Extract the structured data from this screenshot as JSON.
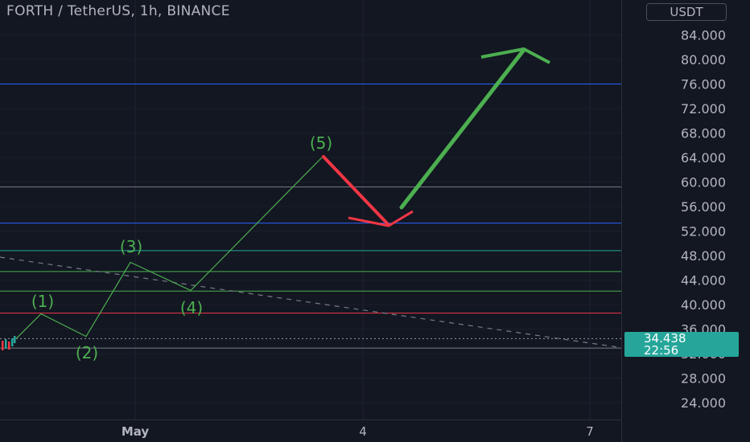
{
  "header": {
    "symbol_title": "FORTH / TetherUS, 1h, BINANCE",
    "currency_button": "USDT"
  },
  "price_badge": {
    "price": "34.438",
    "countdown": "22:56",
    "color": "#26a69a"
  },
  "chart_data": {
    "type": "line",
    "symbol": "FORTH / TetherUS",
    "interval": "1h",
    "exchange": "BINANCE",
    "y_axis_unit": "USDT",
    "y_ticks": [
      24,
      28,
      32,
      36,
      40,
      44,
      48,
      52,
      56,
      60,
      64,
      68,
      72,
      76,
      80,
      84
    ],
    "y_tick_labels": [
      "24.000",
      "28.000",
      "32.000",
      "36.000",
      "40.000",
      "44.000",
      "48.000",
      "52.000",
      "56.000",
      "60.000",
      "64.000",
      "68.000",
      "72.000",
      "76.000",
      "80.000",
      "84.000"
    ],
    "x_tick_labels": [
      "May",
      "4",
      "7"
    ],
    "current_price": 34.438,
    "horizontal_levels": [
      {
        "value": 76.0,
        "color": "#2962ff"
      },
      {
        "value": 59.2,
        "color": "#787b86"
      },
      {
        "value": 53.3,
        "color": "#2962ff"
      },
      {
        "value": 48.8,
        "color": "#26a69a"
      },
      {
        "value": 45.4,
        "color": "#4caf50"
      },
      {
        "value": 42.2,
        "color": "#4caf50"
      },
      {
        "value": 38.6,
        "color": "#f23645"
      },
      {
        "value": 32.9,
        "color": "#787b86"
      }
    ],
    "wave_labels": [
      "(1)",
      "(2)",
      "(3)",
      "(4)",
      "(5)"
    ],
    "wave_values": [
      38.5,
      34.8,
      46.9,
      42.3,
      64.0
    ],
    "wave_color": "#4caf50",
    "correction_color": "#f23645",
    "projection_color": "#4caf50",
    "trendline_color": "#787b86",
    "grid": true
  }
}
